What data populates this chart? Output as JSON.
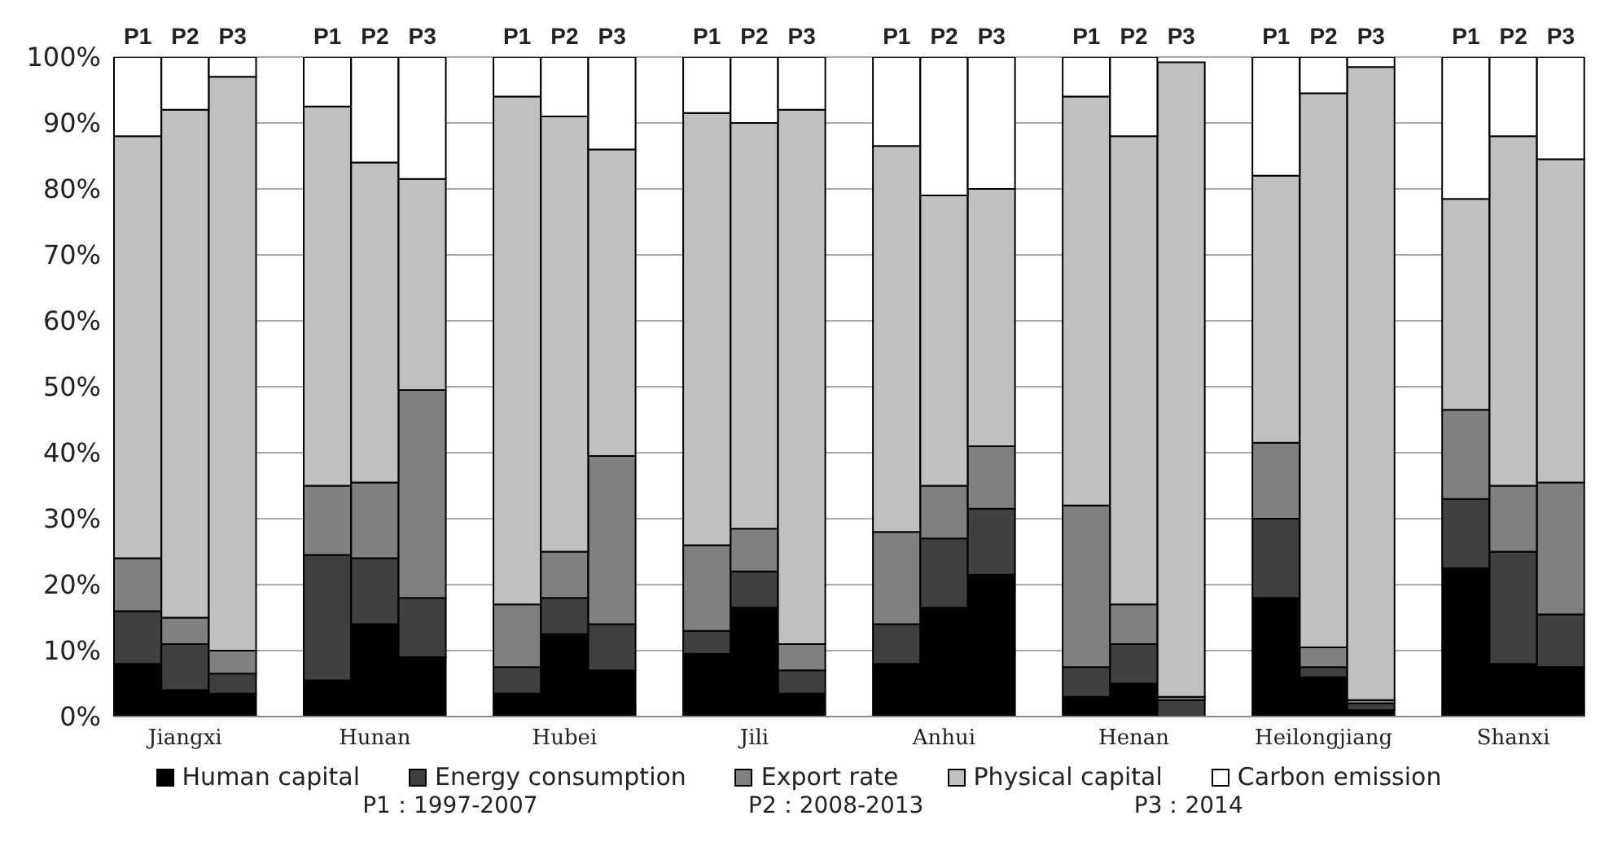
{
  "chart_data": {
    "type": "bar",
    "stacked": true,
    "categories": [
      "P1",
      "P2",
      "P3",
      null,
      "P1",
      "P2",
      "P3",
      null,
      "P1",
      "P2",
      "P3",
      null,
      "P1",
      "P2",
      "P3",
      null,
      "P1",
      "P2",
      "P3",
      null,
      "P1",
      "P2",
      "P3",
      null,
      "P1",
      "P2",
      "P3",
      null,
      "P1",
      "P2",
      "P3"
    ],
    "series": [
      {
        "name": "Human capital",
        "color": "#000000",
        "values": [
          8,
          4,
          3.5,
          null,
          5.5,
          14,
          9,
          null,
          3.5,
          12.5,
          7,
          null,
          9.5,
          16.5,
          3.5,
          null,
          8,
          16.5,
          21.5,
          null,
          3,
          5,
          null,
          null,
          18,
          6,
          1,
          null,
          22.5,
          8,
          7.5
        ]
      },
      {
        "name": "Energy consumption",
        "color": "#404040",
        "values": [
          8,
          7,
          3,
          null,
          19,
          10,
          9,
          null,
          4,
          5.5,
          7,
          null,
          3.5,
          5.5,
          3.5,
          null,
          6,
          10.5,
          10,
          null,
          4.5,
          6,
          2.5,
          null,
          12,
          1.5,
          1,
          null,
          10.5,
          17,
          8
        ]
      },
      {
        "name": "Export rate",
        "color": "#808080",
        "values": [
          8,
          4,
          3.5,
          null,
          10.5,
          11.5,
          31.5,
          null,
          9.5,
          7,
          25.5,
          null,
          13,
          6.5,
          4,
          null,
          14,
          8,
          9.5,
          null,
          24.5,
          6,
          0.5,
          null,
          11.5,
          3,
          0.5,
          null,
          13.5,
          10,
          20
        ]
      },
      {
        "name": "Physical capital",
        "color": "#c0c0c0",
        "values": [
          64,
          77,
          87,
          null,
          57.5,
          48.5,
          32,
          null,
          77,
          66,
          46.5,
          null,
          65.5,
          61.5,
          81,
          null,
          58.5,
          44,
          39,
          null,
          62,
          71,
          96.2,
          null,
          40.5,
          84,
          96,
          null,
          32,
          53,
          49
        ]
      },
      {
        "name": "Carbon emission",
        "color": "#ffffff",
        "values": [
          12,
          8,
          3,
          null,
          7.5,
          16,
          18.5,
          null,
          6,
          9,
          14,
          null,
          8.5,
          10,
          8,
          null,
          13.5,
          21,
          20,
          null,
          6,
          12,
          null,
          null,
          18,
          5.5,
          1.5,
          null,
          21.5,
          12,
          15.5
        ]
      }
    ],
    "ylim": [
      0,
      100
    ],
    "yticks": [
      {
        "value": 0,
        "label": "0%"
      },
      {
        "value": 10,
        "label": "10%"
      },
      {
        "value": 20,
        "label": "20%"
      },
      {
        "value": 30,
        "label": "30%"
      },
      {
        "value": 40,
        "label": "40%"
      },
      {
        "value": 50,
        "label": "50%"
      },
      {
        "value": 60,
        "label": "60%"
      },
      {
        "value": 70,
        "label": "70%"
      },
      {
        "value": 80,
        "label": "80%"
      },
      {
        "value": 90,
        "label": "90%"
      },
      {
        "value": 100,
        "label": "100%"
      }
    ],
    "grid": "y",
    "legend": "bottom",
    "annotations": [
      "Jiangxi",
      "Hunan",
      "Hubei",
      "Jili",
      "Anhui",
      "Henan",
      "Heilongjiang",
      "Shanxi",
      "P1：1997-2007",
      "P2：2008-2013",
      "P3：2014"
    ]
  }
}
